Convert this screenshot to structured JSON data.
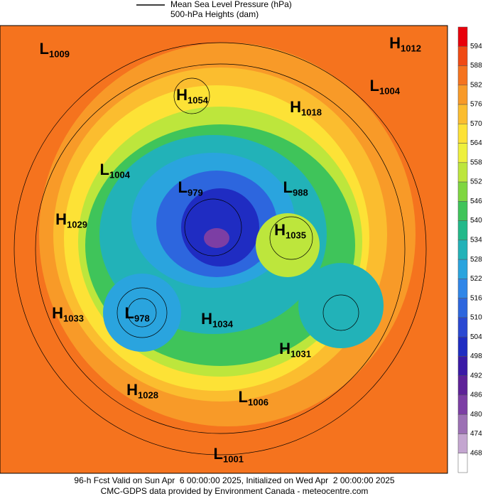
{
  "legend": {
    "lines": [
      "Mean Sea Level Pressure (hPa)",
      "500-hPa Heights (dam)"
    ]
  },
  "centers": [
    {
      "letter": "L",
      "value": 1009
    },
    {
      "letter": "H",
      "value": 1012
    },
    {
      "letter": "L",
      "value": 1004
    },
    {
      "letter": "H",
      "value": 1054
    },
    {
      "letter": "H",
      "value": 1018
    },
    {
      "letter": "L",
      "value": 1004
    },
    {
      "letter": "L",
      "value": 979
    },
    {
      "letter": "L",
      "value": 988
    },
    {
      "letter": "H",
      "value": 1029
    },
    {
      "letter": "H",
      "value": 1035
    },
    {
      "letter": "H",
      "value": 1033
    },
    {
      "letter": "L",
      "value": 978
    },
    {
      "letter": "H",
      "value": 1034
    },
    {
      "letter": "H",
      "value": 1031
    },
    {
      "letter": "H",
      "value": 1028
    },
    {
      "letter": "L",
      "value": 1006
    },
    {
      "letter": "L",
      "value": 1001
    }
  ],
  "colorbar": {
    "labels": [
      594,
      588,
      582,
      576,
      570,
      564,
      558,
      552,
      546,
      540,
      534,
      528,
      522,
      516,
      510,
      504,
      498,
      492,
      486,
      480,
      474,
      468
    ],
    "colors": [
      "#e8000b",
      "#f04a14",
      "#f5731e",
      "#f89a28",
      "#fbbd2f",
      "#fde236",
      "#eef03c",
      "#bde63c",
      "#7fd640",
      "#3fc45a",
      "#22b98a",
      "#22b2b8",
      "#2aa4de",
      "#2f86e8",
      "#2d66de",
      "#2a48d2",
      "#1f2cc2",
      "#3a1aa6",
      "#5e2298",
      "#7c3ea4",
      "#9c70b4",
      "#c4a6d0",
      "#ffffff"
    ]
  },
  "footer": [
    "96-h Fcst Valid on Sun Apr  6 00:00:00 2025, Initialized on Wed Apr  2 00:00:00 2025",
    "CMC-GDPS data provided by Environment Canada - meteocentre.com"
  ]
}
